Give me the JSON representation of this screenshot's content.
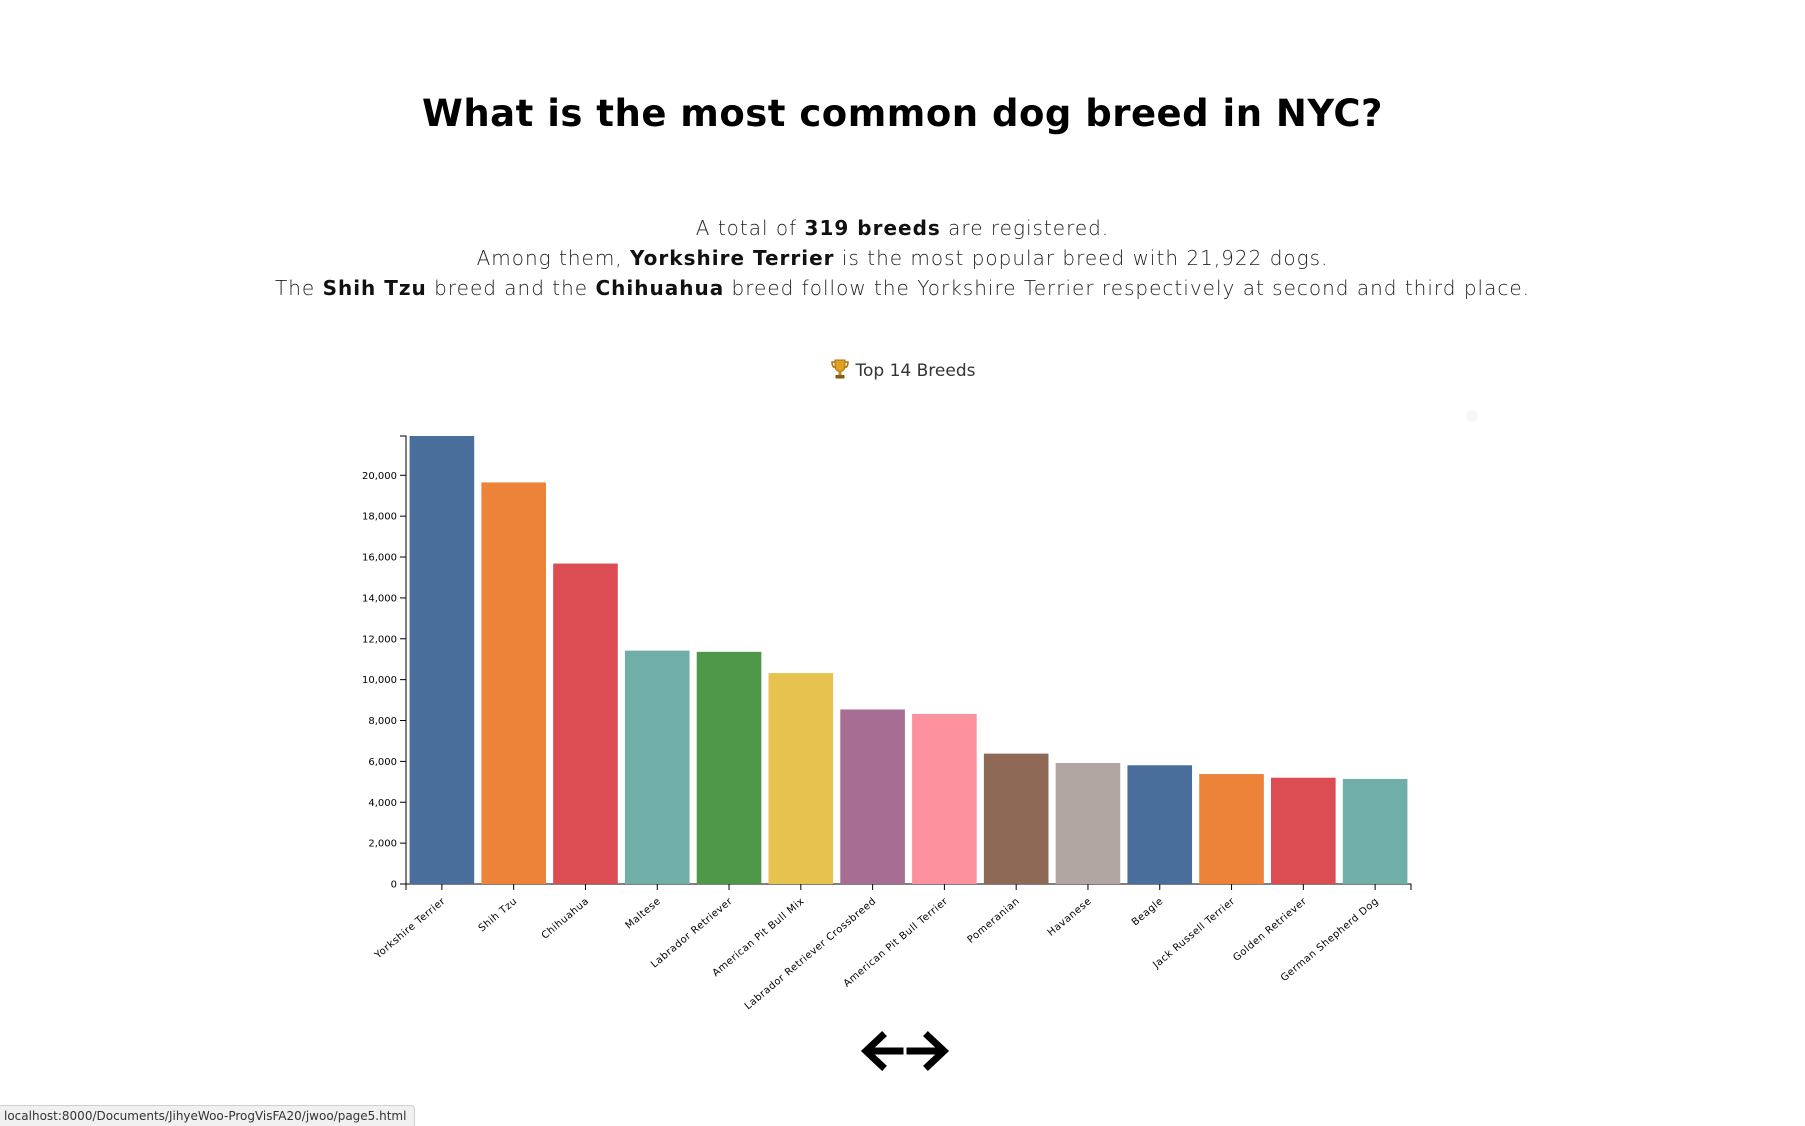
{
  "title": "What is the most common dog breed in NYC?",
  "intro": {
    "line1": {
      "prefix": "A total of ",
      "bold": "319 breeds",
      "suffix": " are registered."
    },
    "line2": {
      "prefix": "Among them, ",
      "bold": "Yorkshire Terrier",
      "suffix": " is the most popular breed with 21,922 dogs."
    },
    "line3": {
      "prefix": "The ",
      "bold1": "Shih Tzu",
      "middle": " breed and the ",
      "bold2": "Chihuahua",
      "suffix": " breed follow the Yorkshire Terrier respectively at second and third place."
    }
  },
  "chart_caption": {
    "icon": "trophy-icon",
    "text": "Top 14 Breeds"
  },
  "chart_data": {
    "type": "bar",
    "title": "Top 14 Breeds",
    "xlabel": "",
    "ylabel": "",
    "ylim": [
      0,
      21922
    ],
    "yticks": [
      0,
      2000,
      4000,
      6000,
      8000,
      10000,
      12000,
      14000,
      16000,
      18000,
      20000
    ],
    "ytick_labels": [
      "0",
      "2,000",
      "4,000",
      "6,000",
      "8,000",
      "10,000",
      "12,000",
      "14,000",
      "16,000",
      "18,000",
      "20,000"
    ],
    "grid": false,
    "categories": [
      "Yorkshire Terrier",
      "Shih Tzu",
      "Chihuahua",
      "Maltese",
      "Labrador Retriever",
      "American Pit Bull Mix",
      "Labrador Retriever Crossbreed",
      "American Pit Bull Terrier",
      "Pomeranian",
      "Havanese",
      "Beagle",
      "Jack Russell Terrier",
      "Golden Retriever",
      "German Shepherd Dog"
    ],
    "values": [
      21922,
      19650,
      15680,
      11420,
      11360,
      10320,
      8540,
      8320,
      6380,
      5920,
      5810,
      5380,
      5200,
      5140
    ],
    "colors": [
      "#4a6e9b",
      "#ed8239",
      "#db4c53",
      "#6fafa8",
      "#509849",
      "#e6c24f",
      "#a66c92",
      "#fd919e",
      "#8e6a56",
      "#b1a6a1",
      "#4a6e9b",
      "#ed8239",
      "#db4c53",
      "#6fafa8"
    ]
  },
  "navigation": {
    "back_icon": "arrow-left-icon",
    "forward_icon": "arrow-right-icon"
  },
  "status_bar": {
    "url": "localhost:8000/Documents/JihyeWoo-ProgVisFA20/jwoo/page5.html"
  }
}
